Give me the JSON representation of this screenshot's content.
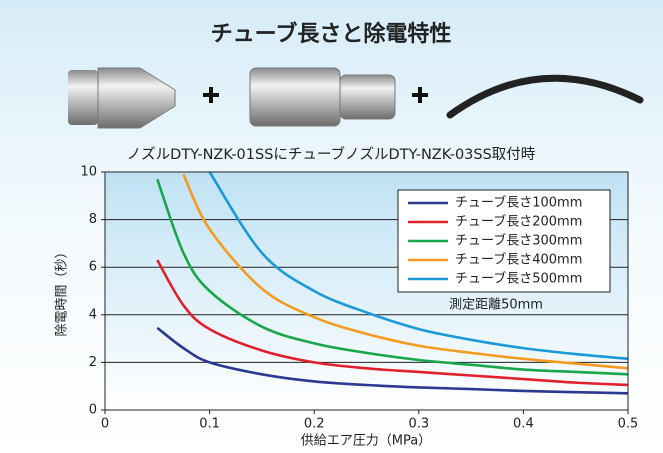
{
  "chart_data": {
    "type": "line",
    "title": "チューブ長さと除電特性",
    "subtitle": "ノズルDTY-NZK-01SSにチューブノズルDTY-NZK-03SS取付時",
    "x_label": "供給エア圧力（MPa）",
    "y_label": "除電時間（秒）",
    "annotation": "測定距離50mm",
    "x": [
      0.05,
      0.075,
      0.1,
      0.15,
      0.2,
      0.25,
      0.3,
      0.35,
      0.4,
      0.45,
      0.5
    ],
    "series": [
      {
        "name": "チューブ長さ100mm",
        "color": "#2b3990",
        "values": [
          3.45,
          2.6,
          2.0,
          1.5,
          1.2,
          1.05,
          0.95,
          0.88,
          0.8,
          0.75,
          0.7
        ]
      },
      {
        "name": "チューブ長さ200mm",
        "color": "#e0202a",
        "values": [
          6.3,
          4.4,
          3.4,
          2.5,
          2.0,
          1.75,
          1.6,
          1.45,
          1.3,
          1.15,
          1.05
        ]
      },
      {
        "name": "チューブ長さ300mm",
        "color": "#1aa64a",
        "values": [
          9.7,
          6.6,
          5.0,
          3.5,
          2.8,
          2.4,
          2.1,
          1.9,
          1.7,
          1.6,
          1.5
        ]
      },
      {
        "name": "チューブ長さ400mm",
        "color": "#f39c1f",
        "values": [
          null,
          9.9,
          7.6,
          5.1,
          3.9,
          3.2,
          2.7,
          2.4,
          2.15,
          1.95,
          1.75
        ]
      },
      {
        "name": "チューブ長さ500mm",
        "color": "#1a9ad6",
        "values": [
          null,
          null,
          10,
          6.6,
          5.0,
          4.1,
          3.4,
          2.95,
          2.6,
          2.35,
          2.15
        ]
      }
    ],
    "xlim": [
      0,
      0.5
    ],
    "xticks": [
      0,
      0.1,
      0.2,
      0.3,
      0.4,
      0.5
    ],
    "ylim": [
      0,
      10
    ],
    "yticks": [
      0,
      2,
      4,
      6,
      8,
      10
    ],
    "grid": true
  }
}
